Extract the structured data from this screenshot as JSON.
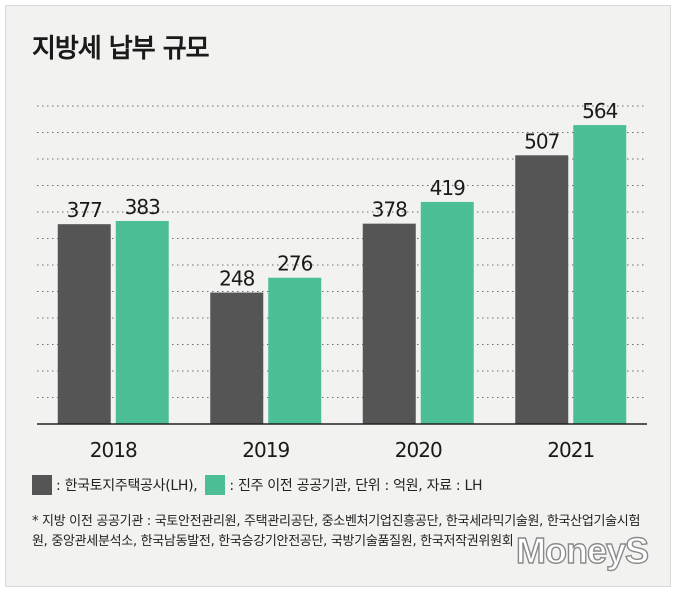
{
  "title": "지방세 납부 규모",
  "legend": {
    "lh_label": ": 한국토지주택공사(LH),",
    "jinju_label": ": 진주 이전 공공기관, 단위 : 억원, 자료 : LH"
  },
  "footnote": "* 지방 이전 공공기관 : 국토안전관리원, 주택관리공단, 중소벤처기업진흥공단, 한국세라믹기술원, 한국산업기술시험원, 중앙관세분석소, 한국남동발전, 한국승강기안전공단, 국방기술품질원, 한국저작권위원회",
  "watermark": "MoneyS",
  "chart_data": {
    "type": "bar",
    "title": "지방세 납부 규모",
    "categories": [
      "2018",
      "2019",
      "2020",
      "2021"
    ],
    "series": [
      {
        "name": "한국토지주택공사(LH)",
        "color": "#555555",
        "values": [
          377,
          248,
          378,
          507
        ]
      },
      {
        "name": "진주 이전 공공기관",
        "color": "#4dbf96",
        "values": [
          383,
          276,
          419,
          564
        ]
      }
    ],
    "unit": "억원",
    "ylim": [
      0,
      600
    ],
    "grid": true,
    "data_labels": true
  },
  "colors": {
    "background": "#f2f2f0",
    "gridline": "#6e6e6e",
    "lh": "#555555",
    "jinju": "#4dbf96"
  }
}
